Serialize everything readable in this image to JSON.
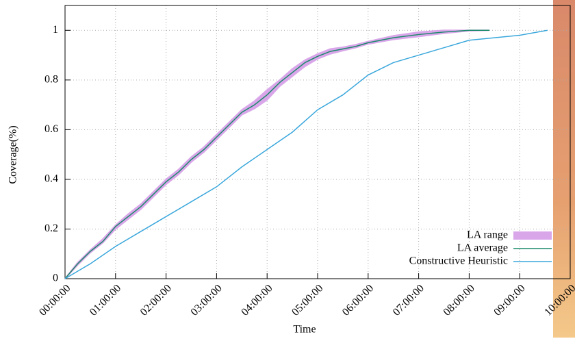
{
  "chart_data": {
    "type": "line",
    "xlabel": "Time",
    "ylabel": "Coverage(%)",
    "xlim": [
      0,
      10
    ],
    "ylim": [
      0,
      1.1
    ],
    "xticks": [
      {
        "value": 0,
        "label": "00:00:00"
      },
      {
        "value": 1,
        "label": "01:00:00"
      },
      {
        "value": 2,
        "label": "02:00:00"
      },
      {
        "value": 3,
        "label": "03:00:00"
      },
      {
        "value": 4,
        "label": "04:00:00"
      },
      {
        "value": 5,
        "label": "05:00:00"
      },
      {
        "value": 6,
        "label": "06:00:00"
      },
      {
        "value": 7,
        "label": "07:00:00"
      },
      {
        "value": 8,
        "label": "08:00:00"
      },
      {
        "value": 9,
        "label": "09:00:00"
      },
      {
        "value": 10,
        "label": "10:00:00"
      }
    ],
    "yticks": [
      0,
      0.2,
      0.4,
      0.6,
      0.8,
      1
    ],
    "grid": true,
    "legend": "bottom-right",
    "series": [
      {
        "name": "LA range",
        "kind": "band",
        "color": "#d9a6ea",
        "x": [
          0,
          0.25,
          0.5,
          0.75,
          1,
          1.25,
          1.5,
          1.75,
          2,
          2.25,
          2.5,
          2.75,
          3,
          3.25,
          3.5,
          3.75,
          4,
          4.25,
          4.5,
          4.75,
          5,
          5.25,
          5.5,
          5.75,
          6,
          6.5,
          7,
          7.5,
          8,
          8.4
        ],
        "low": [
          0,
          0.055,
          0.105,
          0.145,
          0.2,
          0.24,
          0.28,
          0.33,
          0.38,
          0.42,
          0.47,
          0.51,
          0.56,
          0.61,
          0.66,
          0.685,
          0.72,
          0.775,
          0.815,
          0.855,
          0.885,
          0.905,
          0.918,
          0.93,
          0.945,
          0.963,
          0.975,
          0.988,
          0.998,
          1.0
        ],
        "high": [
          0,
          0.065,
          0.115,
          0.16,
          0.215,
          0.26,
          0.3,
          0.35,
          0.4,
          0.44,
          0.49,
          0.53,
          0.58,
          0.63,
          0.68,
          0.715,
          0.76,
          0.8,
          0.845,
          0.88,
          0.905,
          0.925,
          0.932,
          0.942,
          0.955,
          0.978,
          0.993,
          1.0,
          1.0,
          1.0
        ]
      },
      {
        "name": "LA average",
        "color": "#1a8a6a",
        "x": [
          0,
          0.25,
          0.5,
          0.75,
          1,
          1.25,
          1.5,
          1.75,
          2,
          2.25,
          2.5,
          2.75,
          3,
          3.25,
          3.5,
          3.75,
          4,
          4.25,
          4.5,
          4.75,
          5,
          5.25,
          5.5,
          5.75,
          6,
          6.5,
          7,
          7.5,
          8,
          8.4
        ],
        "values": [
          0,
          0.06,
          0.11,
          0.15,
          0.21,
          0.25,
          0.29,
          0.34,
          0.39,
          0.43,
          0.48,
          0.52,
          0.57,
          0.62,
          0.67,
          0.7,
          0.74,
          0.79,
          0.83,
          0.87,
          0.895,
          0.915,
          0.925,
          0.935,
          0.95,
          0.97,
          0.983,
          0.993,
          1.0,
          1.0
        ]
      },
      {
        "name": "Constructive Heuristic",
        "color": "#3aa7dc",
        "x": [
          0,
          0.5,
          1,
          1.5,
          2,
          2.5,
          3,
          3.5,
          4,
          4.5,
          5,
          5.5,
          6,
          6.5,
          7,
          7.5,
          8,
          8.5,
          9,
          9.55
        ],
        "values": [
          0,
          0.06,
          0.13,
          0.19,
          0.25,
          0.31,
          0.37,
          0.45,
          0.52,
          0.59,
          0.68,
          0.74,
          0.82,
          0.87,
          0.9,
          0.93,
          0.96,
          0.97,
          0.98,
          1.0
        ]
      }
    ]
  }
}
